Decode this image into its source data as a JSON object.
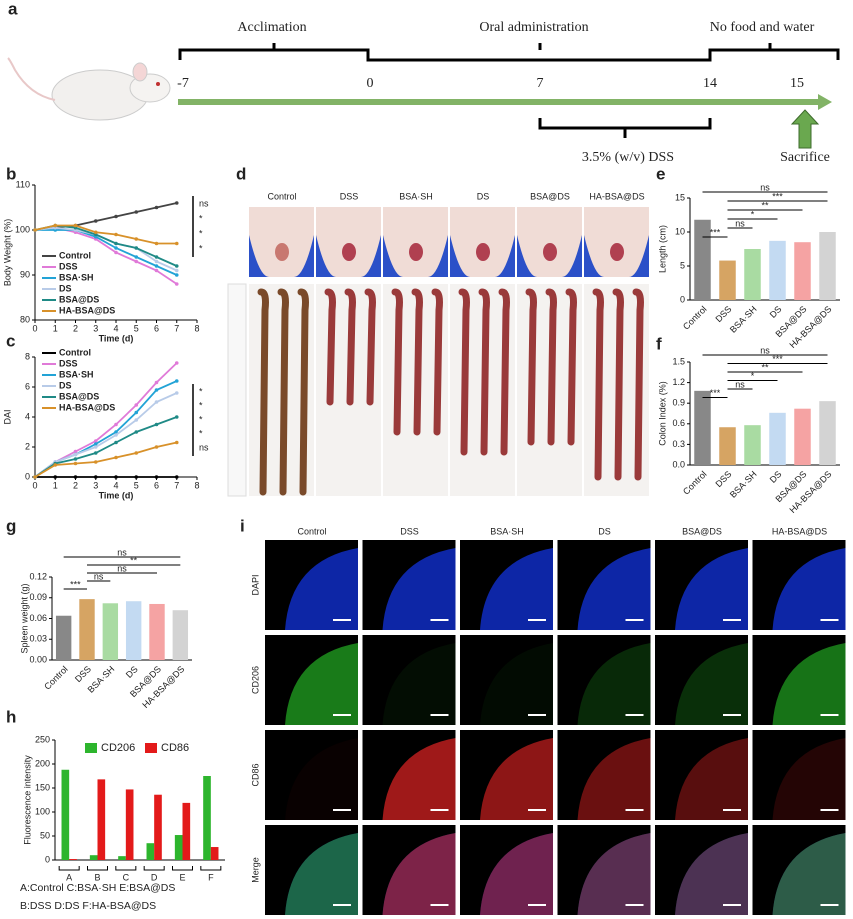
{
  "panel_labels": [
    "a",
    "b",
    "c",
    "d",
    "e",
    "f",
    "g",
    "h",
    "i"
  ],
  "timeline": {
    "phases": [
      "Acclimation",
      "Oral administration",
      "No food and water"
    ],
    "days": [
      -7,
      0,
      7,
      14,
      15
    ],
    "treatment": "3.5% (w/v) DSS",
    "endpoint": "Sacrifice"
  },
  "photos": {
    "groups": [
      "Control",
      "DSS",
      "BSA·SH",
      "DS",
      "BSA@DS",
      "HA-BSA@DS"
    ]
  },
  "microscopy": {
    "groups": [
      "Control",
      "DSS",
      "BSA·SH",
      "DS",
      "BSA@DS",
      "HA-BSA@DS"
    ],
    "channels": [
      "DAPI",
      "CD206",
      "CD86",
      "Merge"
    ]
  },
  "chart_data": [
    {
      "type": "line",
      "ylabel": "Body Weight (%)",
      "xlabel": "Time (d)",
      "x": [
        0,
        1,
        2,
        3,
        4,
        5,
        6,
        7
      ],
      "xlim": [
        0,
        8
      ],
      "xticks": [
        0,
        1,
        2,
        3,
        4,
        5,
        6,
        7,
        8
      ],
      "ylim": [
        80,
        110
      ],
      "yticks": [
        80,
        90,
        100,
        110
      ],
      "series": [
        {
          "name": "Control",
          "color": "#444444",
          "values": [
            100,
            100.5,
            101,
            102,
            103,
            104,
            105,
            106
          ]
        },
        {
          "name": "DSS",
          "color": "#e07ad8",
          "values": [
            100,
            100.5,
            99.5,
            98,
            95,
            93,
            91,
            88
          ]
        },
        {
          "name": "BSA·SH",
          "color": "#22a3d6",
          "values": [
            100,
            100,
            100,
            98.5,
            96,
            94,
            92,
            90
          ]
        },
        {
          "name": "DS",
          "color": "#b8cbe8",
          "values": [
            100,
            100.5,
            100,
            99,
            97,
            96,
            93,
            91
          ]
        },
        {
          "name": "BSA@DS",
          "color": "#1f8a86",
          "values": [
            100,
            101,
            100.5,
            99,
            97,
            96,
            94,
            92
          ]
        },
        {
          "name": "HA-BSA@DS",
          "color": "#d8912a",
          "values": [
            100,
            101,
            101,
            99.5,
            99,
            98,
            97,
            97
          ]
        }
      ],
      "significance": [
        "ns",
        "*",
        "*",
        "*"
      ]
    },
    {
      "type": "line",
      "ylabel": "DAI",
      "xlabel": "Time (d)",
      "x": [
        0,
        1,
        2,
        3,
        4,
        5,
        6,
        7
      ],
      "xlim": [
        0,
        8
      ],
      "xticks": [
        0,
        1,
        2,
        3,
        4,
        5,
        6,
        7,
        8
      ],
      "ylim": [
        0,
        8
      ],
      "yticks": [
        0,
        2,
        4,
        6,
        8
      ],
      "series": [
        {
          "name": "Control",
          "color": "#000000",
          "values": [
            0,
            0,
            0,
            0,
            0,
            0,
            0,
            0
          ]
        },
        {
          "name": "DSS",
          "color": "#e07ad8",
          "values": [
            0,
            1,
            1.7,
            2.4,
            3.5,
            4.8,
            6.3,
            7.6
          ]
        },
        {
          "name": "BSA·SH",
          "color": "#22a3d6",
          "values": [
            0,
            1,
            1.5,
            2.2,
            3,
            4.3,
            5.8,
            6.4
          ]
        },
        {
          "name": "DS",
          "color": "#b8cbe8",
          "values": [
            0,
            1,
            1.5,
            2,
            2.8,
            3.8,
            5,
            5.6
          ]
        },
        {
          "name": "BSA@DS",
          "color": "#1f8a86",
          "values": [
            0,
            0.9,
            1.2,
            1.6,
            2.3,
            3,
            3.5,
            4
          ]
        },
        {
          "name": "HA-BSA@DS",
          "color": "#d8912a",
          "values": [
            0,
            0.8,
            0.9,
            1,
            1.3,
            1.6,
            2,
            2.3
          ]
        }
      ],
      "significance": [
        "*",
        "*",
        "*",
        "*",
        "ns"
      ]
    },
    {
      "type": "bar",
      "ylabel": "Length (cm)",
      "categories": [
        "Control",
        "DSS",
        "BSA·SH",
        "DS",
        "BSA@DS",
        "HA-BSA@DS"
      ],
      "values": [
        11.8,
        5.8,
        7.5,
        8.7,
        8.5,
        10
      ],
      "colors": [
        "#888888",
        "#d6a463",
        "#a9dba2",
        "#c3daf2",
        "#f5a3a3",
        "#d3d3d3"
      ],
      "ylim": [
        0,
        15
      ],
      "yticks": [
        0,
        5,
        10,
        15
      ],
      "significance": [
        "ns",
        "***",
        "**",
        "*",
        "ns",
        "***"
      ]
    },
    {
      "type": "bar",
      "ylabel": "Colon Index (%)",
      "categories": [
        "Control",
        "DSS",
        "BSA·SH",
        "DS",
        "BSA@DS",
        "HA-BSA@DS"
      ],
      "values": [
        1.08,
        0.55,
        0.58,
        0.76,
        0.82,
        0.93
      ],
      "colors": [
        "#888888",
        "#d6a463",
        "#a9dba2",
        "#c3daf2",
        "#f5a3a3",
        "#d3d3d3"
      ],
      "ylim": [
        0,
        1.5
      ],
      "yticks": [
        {
          "value": 0,
          "label": "0.0"
        },
        0.3,
        0.6,
        0.9,
        1.2,
        1.5
      ],
      "significance": [
        "ns",
        "***",
        "**",
        "*",
        "ns",
        "***"
      ]
    },
    {
      "type": "bar",
      "ylabel": "Spleen weight (g)",
      "categories": [
        "Control",
        "DSS",
        "BSA·SH",
        "DS",
        "BSA@DS",
        "HA-BSA@DS"
      ],
      "values": [
        0.064,
        0.088,
        0.082,
        0.085,
        0.081,
        0.072
      ],
      "colors": [
        "#888888",
        "#d6a463",
        "#a9dba2",
        "#c3daf2",
        "#f5a3a3",
        "#d3d3d3"
      ],
      "ylim": [
        0,
        0.12
      ],
      "yticks": [
        {
          "value": 0,
          "label": "0.00"
        },
        0.03,
        0.06,
        0.09,
        0.12
      ],
      "significance": [
        "ns",
        "**",
        "ns",
        "ns",
        "***"
      ]
    },
    {
      "type": "bar",
      "ylabel": "Fluorescence intensity",
      "categories": [
        "A",
        "B",
        "C",
        "D",
        "E",
        "F"
      ],
      "ylim": [
        0,
        250
      ],
      "yticks": [
        0,
        50,
        100,
        150,
        200,
        250
      ],
      "series": [
        {
          "name": "CD206",
          "color": "#2db52d",
          "values": [
            188,
            10,
            8,
            35,
            52,
            175
          ]
        },
        {
          "name": "CD86",
          "color": "#e31a1a",
          "values": [
            2,
            168,
            147,
            136,
            119,
            27
          ]
        }
      ],
      "notes": [
        "A:Control C:BSA·SH E:BSA@DS",
        "B:DSS D:DS F:HA-BSA@DS"
      ]
    }
  ]
}
